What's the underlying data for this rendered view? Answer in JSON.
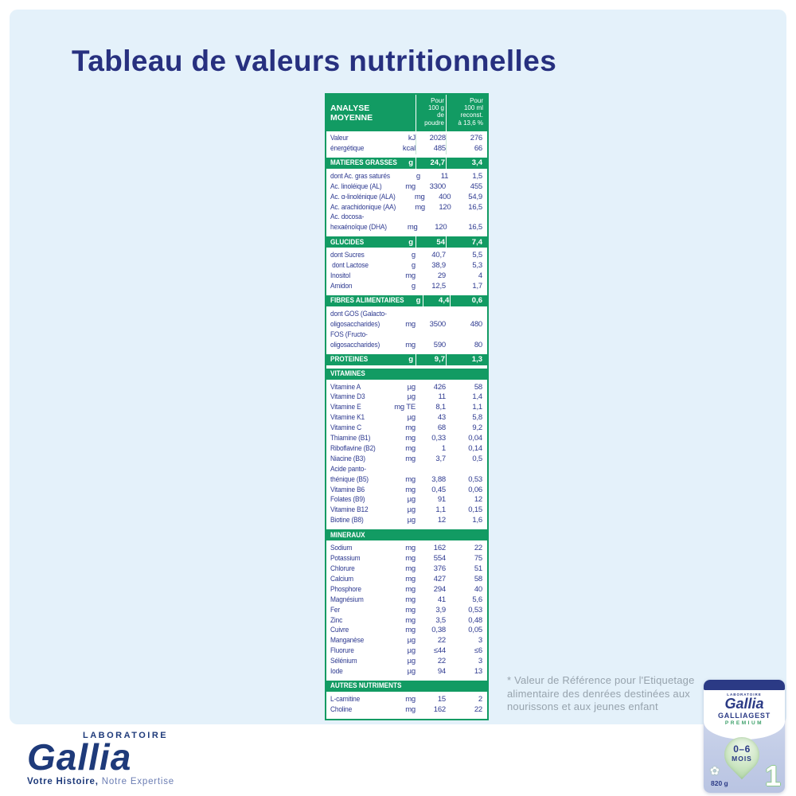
{
  "colors": {
    "green": "#129b63",
    "navy": "#2e3a90",
    "navydark": "#27307f",
    "panel": "#e4f1fa",
    "footnote": "#97a3ad",
    "logonavy": "#1e3a7a",
    "canlid": "#2b3a85"
  },
  "page": {
    "title": "Tableau de valeurs nutritionnelles"
  },
  "table": {
    "header": {
      "title": "ANALYSE\nMOYENNE",
      "col_per100g": "Pour\n100 g\nde\npoudre",
      "col_per100ml": "Pour\n100 ml\nreconst.\nà 13,6 %"
    },
    "sections": [
      {
        "energy": true,
        "rows": [
          [
            "Valeur",
            "kJ",
            "2028",
            "276"
          ],
          [
            "énergétique",
            "kcal",
            "485",
            "66"
          ]
        ]
      },
      {
        "band": [
          "MATIERES GRASSES",
          "g",
          "24,7",
          "3,4"
        ],
        "rows": [
          [
            "dont Ac. gras saturés",
            "g",
            "11",
            "1,5"
          ],
          [
            "Ac. linoléique (AL)",
            "mg",
            "3300",
            "455"
          ],
          [
            "Ac. α-linolénique (ALA)",
            "mg",
            "400",
            "54,9"
          ],
          [
            "Ac. arachidonique (AA)",
            "mg",
            "120",
            "16,5"
          ],
          [
            "Ac. docosa-",
            "",
            "",
            ""
          ],
          [
            "hexaénoïque (DHA)",
            "mg",
            "120",
            "16,5"
          ]
        ]
      },
      {
        "band": [
          "GLUCIDES",
          "g",
          "54",
          "7,4"
        ],
        "rows": [
          [
            "dont Sucres",
            "g",
            "40,7",
            "5,5"
          ],
          [
            " dont Lactose",
            "g",
            "38,9",
            "5,3"
          ],
          [
            "Inositol",
            "mg",
            "29",
            "4"
          ],
          [
            "Amidon",
            "g",
            "12,5",
            "1,7"
          ]
        ]
      },
      {
        "band": [
          "FIBRES ALIMENTAIRES",
          "g",
          "4,4",
          "0,6"
        ],
        "rows": [
          [
            "dont GOS (Galacto-",
            "",
            "",
            ""
          ],
          [
            "oligosaccharides)",
            "mg",
            "3500",
            "480"
          ],
          [
            "FOS (Fructo-",
            "",
            "",
            ""
          ],
          [
            "oligosaccharides)",
            "mg",
            "590",
            "80"
          ]
        ]
      },
      {
        "band": [
          "PROTEINES",
          "g",
          "9,7",
          "1,3"
        ],
        "rows": []
      },
      {
        "band": [
          "VITAMINES",
          "",
          "",
          ""
        ],
        "rows": [
          [
            "Vitamine A",
            "µg",
            "426",
            "58"
          ],
          [
            "Vitamine D3",
            "µg",
            "11",
            "1,4"
          ],
          [
            "Vitamine E",
            "mg TE",
            "8,1",
            "1,1"
          ],
          [
            "Vitamine K1",
            "µg",
            "43",
            "5,8"
          ],
          [
            "Vitamine C",
            "mg",
            "68",
            "9,2"
          ],
          [
            "Thiamine (B1)",
            "mg",
            "0,33",
            "0,04"
          ],
          [
            "Riboflavine (B2)",
            "mg",
            "1",
            "0,14"
          ],
          [
            "Niacine (B3)",
            "mg",
            "3,7",
            "0,5"
          ],
          [
            "Acide panto-",
            "",
            "",
            ""
          ],
          [
            "thénique (B5)",
            "mg",
            "3,88",
            "0,53"
          ],
          [
            "Vitamine B6",
            "mg",
            "0,45",
            "0,06"
          ],
          [
            "Folates (B9)",
            "µg",
            "91",
            "12"
          ],
          [
            "Vitamine B12",
            "µg",
            "1,1",
            "0,15"
          ],
          [
            "Biotine (B8)",
            "µg",
            "12",
            "1,6"
          ]
        ]
      },
      {
        "band": [
          "MINERAUX",
          "",
          "",
          ""
        ],
        "rows": [
          [
            "Sodium",
            "mg",
            "162",
            "22"
          ],
          [
            "Potassium",
            "mg",
            "554",
            "75"
          ],
          [
            "Chlorure",
            "mg",
            "376",
            "51"
          ],
          [
            "Calcium",
            "mg",
            "427",
            "58"
          ],
          [
            "Phosphore",
            "mg",
            "294",
            "40"
          ],
          [
            "Magnésium",
            "mg",
            "41",
            "5,6"
          ],
          [
            "Fer",
            "mg",
            "3,9",
            "0,53"
          ],
          [
            "Zinc",
            "mg",
            "3,5",
            "0,48"
          ],
          [
            "Cuivre",
            "mg",
            "0,38",
            "0,05"
          ],
          [
            "Manganèse",
            "µg",
            "22",
            "3"
          ],
          [
            "Fluorure",
            "µg",
            "≤44",
            "≤6"
          ],
          [
            "Sélénium",
            "µg",
            "22",
            "3"
          ],
          [
            "Iode",
            "µg",
            "94",
            "13"
          ]
        ]
      },
      {
        "band": [
          "AUTRES NUTRIMENTS",
          "",
          "",
          ""
        ],
        "rows": [
          [
            "L-carnitine",
            "mg",
            "15",
            "2"
          ],
          [
            "Choline",
            "mg",
            "162",
            "22"
          ]
        ]
      }
    ]
  },
  "footnote": {
    "text": "* Valeur de Référence pour l'Etiquetage alimentaire des denrées destinées aux nourissons et aux jeunes enfant"
  },
  "logo": {
    "laboratoire": "LABORATOIRE",
    "brand": "Gallia",
    "tagline1": "Votre Histoire,",
    "tagline2": "Notre Expertise"
  },
  "can": {
    "brand_small": "LABORATOIRE",
    "brand": "Gallia",
    "line": "GALLIAGEST",
    "tier": "PREMIUM",
    "age": "0–6",
    "age2": "MOIS",
    "weight": "820 g",
    "stage": "1"
  }
}
